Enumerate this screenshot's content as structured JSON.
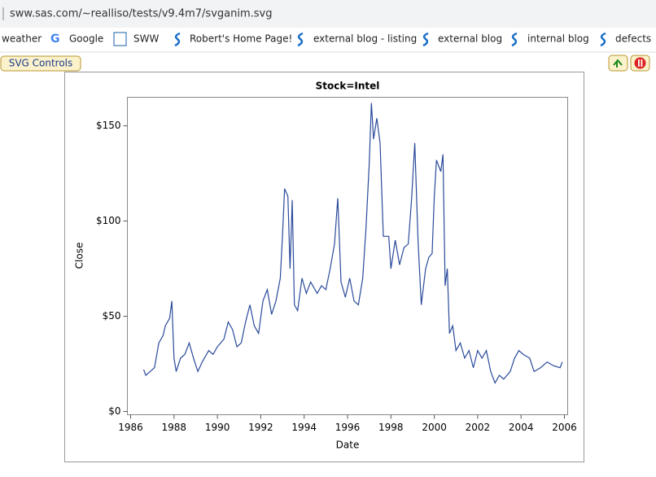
{
  "browser": {
    "url": "sww.sas.com/~realliso/tests/v9.4m7/svganim.svg",
    "bookmarks": [
      "weather",
      "Google",
      "SWW",
      "Robert's Home Page!",
      "external blog - listing",
      "external blog",
      "internal blog",
      "defects"
    ],
    "svg_controls": "SVG Controls"
  },
  "chart_data": {
    "type": "line",
    "title": "Stock=Intel",
    "x_label": "Date",
    "y_label": "Close",
    "color": "#2a4a9a",
    "x": [
      1986.6,
      1986.7,
      1986.9,
      1987.1,
      1987.3,
      1987.5,
      1987.6,
      1987.8,
      1987.9,
      1988.0,
      1988.1,
      1988.3,
      1988.5,
      1988.7,
      1988.9,
      1989.1,
      1989.3,
      1989.6,
      1989.8,
      1990.0,
      1990.3,
      1990.5,
      1990.7,
      1990.9,
      1991.1,
      1991.3,
      1991.5,
      1991.7,
      1991.9,
      1992.1,
      1992.3,
      1992.5,
      1992.7,
      1992.9,
      1993.0,
      1993.1,
      1993.25,
      1993.35,
      1993.45,
      1993.55,
      1993.7,
      1993.9,
      1994.1,
      1994.3,
      1994.6,
      1994.8,
      1995.0,
      1995.2,
      1995.4,
      1995.55,
      1995.7,
      1995.9,
      1996.1,
      1996.3,
      1996.5,
      1996.7,
      1996.85,
      1997.0,
      1997.1,
      1997.2,
      1997.35,
      1997.5,
      1997.65,
      1997.9,
      1998.0,
      1998.2,
      1998.4,
      1998.6,
      1998.8,
      1998.95,
      1999.1,
      1999.25,
      1999.4,
      1999.6,
      1999.75,
      1999.9,
      2000.0,
      2000.1,
      2000.3,
      2000.4,
      2000.5,
      2000.6,
      2000.7,
      2000.85,
      2001.0,
      2001.2,
      2001.4,
      2001.6,
      2001.8,
      2002.0,
      2002.2,
      2002.4,
      2002.6,
      2002.8,
      2003.0,
      2003.2,
      2003.5,
      2003.7,
      2003.9,
      2004.1,
      2004.4,
      2004.6,
      2004.9,
      2005.2,
      2005.5,
      2005.8,
      2005.9
    ],
    "values": [
      22,
      19,
      21,
      23,
      36,
      40,
      45,
      49,
      58,
      28,
      21,
      28,
      30,
      36,
      28,
      21,
      26,
      32,
      30,
      34,
      38,
      47,
      43,
      34,
      36,
      47,
      56,
      45,
      41,
      58,
      64,
      51,
      58,
      70,
      92,
      117,
      113,
      75,
      111,
      56,
      53,
      70,
      62,
      68,
      62,
      66,
      64,
      75,
      88,
      112,
      68,
      60,
      70,
      58,
      56,
      70,
      96,
      130,
      162,
      143,
      154,
      141,
      92,
      92,
      75,
      90,
      77,
      86,
      88,
      111,
      141,
      90,
      56,
      75,
      81,
      83,
      113,
      132,
      126,
      135,
      66,
      75,
      41,
      45,
      32,
      36,
      28,
      32,
      23,
      32,
      28,
      32,
      21,
      15,
      19,
      17,
      21,
      28,
      32,
      30,
      28,
      21,
      23,
      26,
      24,
      23,
      26
    ],
    "xlim": [
      1985.85,
      2006.15
    ],
    "xticks": [
      1986,
      1988,
      1990,
      1992,
      1994,
      1996,
      1998,
      2000,
      2002,
      2004,
      2006
    ],
    "ylim": [
      -1.7,
      165
    ],
    "yticks": [
      {
        "value": 0,
        "label": "$0"
      },
      {
        "value": 50,
        "label": "$50"
      },
      {
        "value": 100,
        "label": "$100"
      },
      {
        "value": 150,
        "label": "$150"
      }
    ],
    "grid": false
  }
}
